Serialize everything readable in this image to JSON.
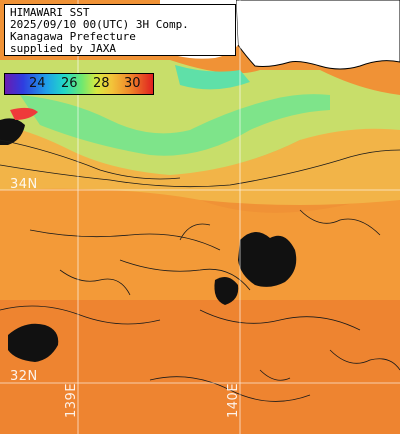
{
  "info": {
    "line1": "HIMAWARI SST",
    "line2": "2025/09/10 00(UTC) 3H Comp.",
    "line3": "Kanagawa Prefecture",
    "line4": "supplied by JAXA"
  },
  "legend": {
    "unit": "",
    "ticks": [
      "24",
      "26",
      "28",
      "30"
    ]
  },
  "graticule": {
    "lat_34": "34N",
    "lat_32": "32N",
    "lon_139": "139E",
    "lon_140": "140E"
  },
  "colors": {
    "land": "#ffffff",
    "cold_sst": "#7de888",
    "mid_sst": "#c8e06a",
    "warm_sst": "#f2a23a",
    "hot_sst": "#ef8a2a",
    "cloud_mask": "#111111",
    "gridline": "#ffffff"
  }
}
